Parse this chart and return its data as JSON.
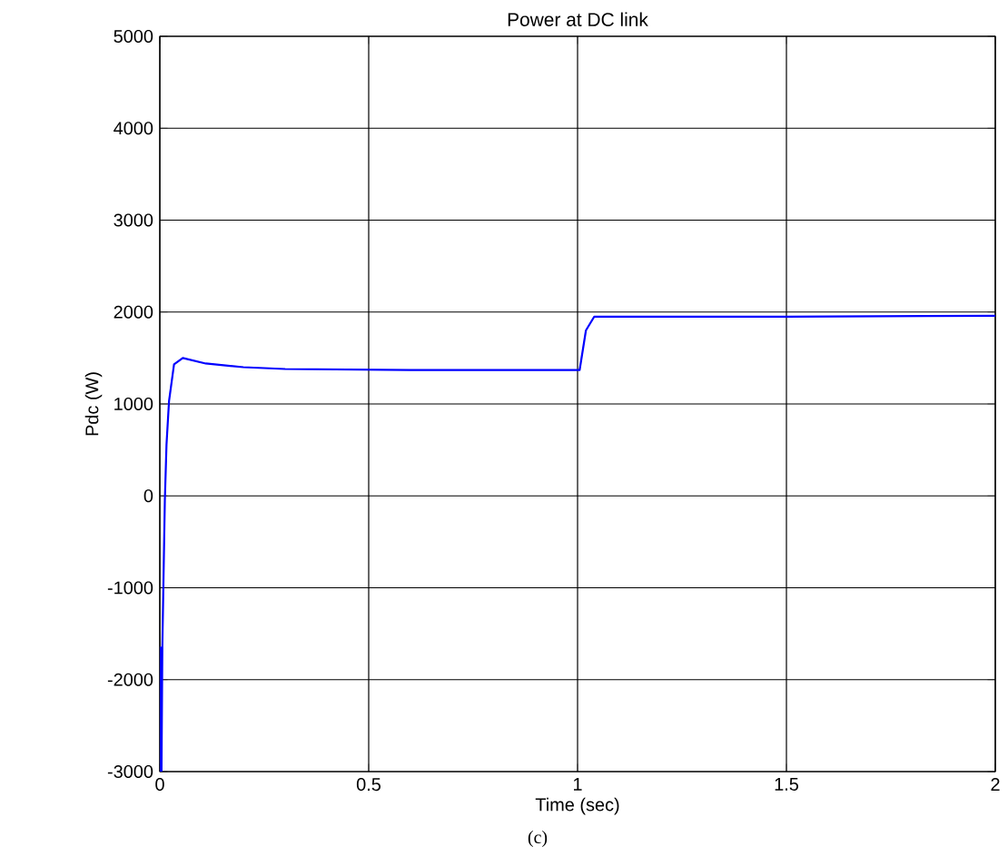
{
  "chart_data": {
    "type": "line",
    "title": "Power at DC link",
    "xlabel": "Time (sec)",
    "ylabel": "Pdc (W)",
    "annotations": [
      "(c)"
    ],
    "x": [
      0,
      0.002,
      0.004,
      0.006,
      0.012,
      0.016,
      0.022,
      0.034,
      0.055,
      0.11,
      0.2,
      0.3,
      0.6,
      1.0,
      1.005,
      1.02,
      1.04,
      1.5,
      2.0
    ],
    "series": [
      {
        "color": "#0000ff",
        "values": [
          -3000,
          -1650,
          -3000,
          -1650,
          -50,
          560,
          1030,
          1430,
          1500,
          1440,
          1400,
          1380,
          1370,
          1370,
          1370,
          1800,
          1950,
          1950,
          1960
        ]
      }
    ],
    "xlim": [
      0,
      2
    ],
    "ylim": [
      -3000,
      5000
    ],
    "xticks": [
      0,
      0.5,
      1,
      1.5,
      2
    ],
    "yticks": [
      -3000,
      -2000,
      -1000,
      0,
      1000,
      2000,
      3000,
      4000,
      5000
    ],
    "grid": true
  }
}
